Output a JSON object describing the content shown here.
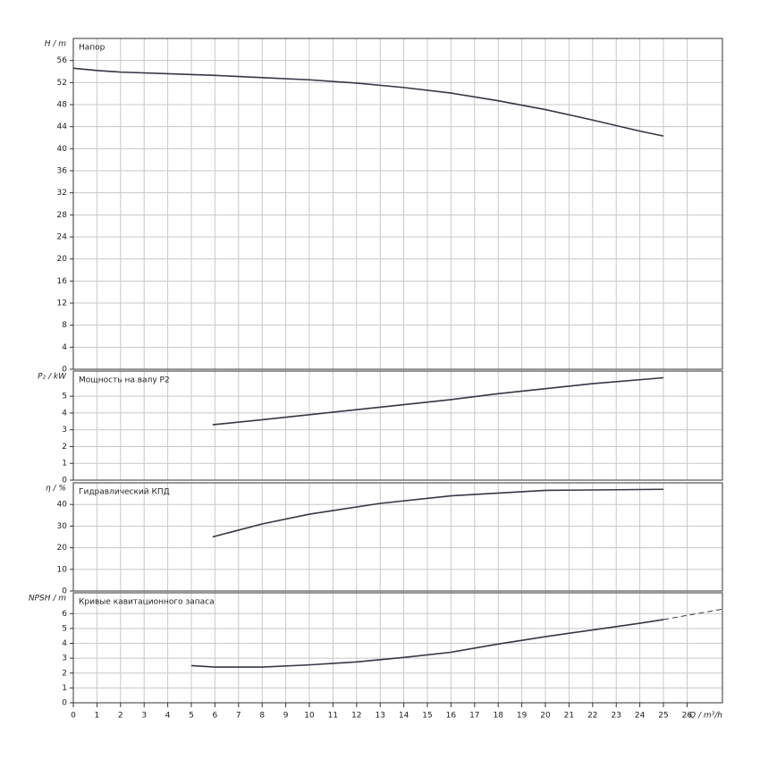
{
  "chart_data": [
    {
      "type": "line",
      "title": "Напор",
      "y_label": "H / m",
      "xlim": [
        0,
        27.5
      ],
      "ylim": [
        0,
        60
      ],
      "yticks": [
        0,
        4,
        8,
        12,
        16,
        20,
        24,
        28,
        32,
        36,
        40,
        44,
        48,
        52,
        56
      ],
      "grid": true,
      "series": [
        {
          "color": "#333845",
          "x": [
            0,
            1,
            2,
            4,
            6,
            8,
            10,
            12,
            14,
            16,
            18,
            20,
            22,
            24,
            25
          ],
          "values": [
            54.6,
            54.2,
            53.9,
            53.6,
            53.3,
            52.9,
            52.5,
            51.9,
            51.1,
            50.1,
            48.7,
            47.1,
            45.2,
            43.2,
            42.3
          ]
        }
      ]
    },
    {
      "type": "line",
      "title": "Мощность на валу P2",
      "y_label": "P₂ / kW",
      "xlim": [
        0,
        27.5
      ],
      "ylim": [
        0,
        6.5
      ],
      "yticks": [
        0,
        1,
        2,
        3,
        4,
        5
      ],
      "grid": true,
      "series": [
        {
          "color": "#333845",
          "x": [
            5.9,
            8,
            10,
            12,
            14,
            16,
            18,
            20,
            22,
            25
          ],
          "values": [
            3.3,
            3.6,
            3.9,
            4.2,
            4.5,
            4.8,
            5.15,
            5.45,
            5.75,
            6.1
          ]
        }
      ]
    },
    {
      "type": "line",
      "title": "Гидравлический КПД",
      "y_label": "η / %",
      "xlim": [
        0,
        27.5
      ],
      "ylim": [
        0,
        50
      ],
      "yticks": [
        0,
        10,
        20,
        30,
        40
      ],
      "grid": true,
      "series": [
        {
          "color": "#333845",
          "x": [
            5.9,
            8,
            10,
            13,
            16,
            20,
            25
          ],
          "values": [
            25,
            31,
            35.5,
            40.5,
            44,
            46.5,
            47
          ]
        }
      ]
    },
    {
      "type": "line",
      "title": "Кривые кавитационного запаса",
      "y_label": "NPSH / m",
      "x_label": "Q / m³/h",
      "xlim": [
        0,
        27.5
      ],
      "ylim": [
        0,
        7.4
      ],
      "xticks": [
        0,
        1,
        2,
        3,
        4,
        5,
        6,
        7,
        8,
        9,
        10,
        11,
        12,
        13,
        14,
        15,
        16,
        17,
        18,
        19,
        20,
        21,
        22,
        23,
        24,
        25,
        26
      ],
      "yticks": [
        0,
        1,
        2,
        3,
        4,
        5,
        6
      ],
      "grid": true,
      "series": [
        {
          "color": "#333845",
          "x": [
            5,
            6,
            8,
            10,
            12,
            14,
            16,
            18,
            20,
            22,
            24,
            25
          ],
          "values": [
            2.5,
            2.4,
            2.4,
            2.55,
            2.75,
            3.05,
            3.4,
            3.95,
            4.45,
            4.9,
            5.35,
            5.6
          ]
        },
        {
          "color": "#333845",
          "dashed": true,
          "x": [
            25,
            27.5
          ],
          "values": [
            5.6,
            6.3
          ]
        }
      ]
    }
  ]
}
